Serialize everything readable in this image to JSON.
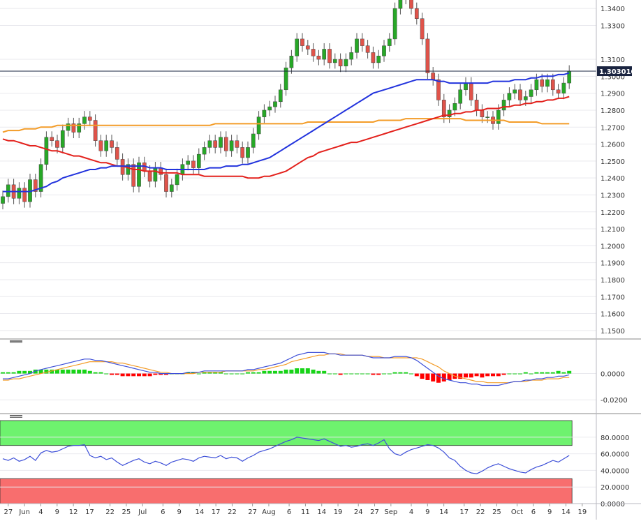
{
  "chart_data": [
    {
      "panel": "price",
      "type": "candlestick",
      "ylim": [
        1.145,
        1.345
      ],
      "y_ticks": [
        "1.3400",
        "1.3300",
        "1.3100",
        "1.3000",
        "1.2900",
        "1.2800",
        "1.2700",
        "1.2600",
        "1.2500",
        "1.2400",
        "1.2300",
        "1.2200",
        "1.2100",
        "1.2000",
        "1.1900",
        "1.1800",
        "1.1700",
        "1.1600",
        "1.1500"
      ],
      "y_tick_values": [
        1.34,
        1.33,
        1.31,
        1.3,
        1.29,
        1.28,
        1.27,
        1.26,
        1.25,
        1.24,
        1.23,
        1.22,
        1.21,
        1.2,
        1.19,
        1.18,
        1.17,
        1.16,
        1.15
      ],
      "current_price_label": "1.303010",
      "current_price": 1.30301,
      "up_color": "#27a827",
      "down_color": "#e0534a",
      "closes": [
        1.229,
        1.236,
        1.228,
        1.234,
        1.226,
        1.239,
        1.232,
        1.248,
        1.264,
        1.262,
        1.258,
        1.268,
        1.272,
        1.267,
        1.272,
        1.276,
        1.274,
        1.262,
        1.256,
        1.262,
        1.258,
        1.251,
        1.242,
        1.248,
        1.235,
        1.249,
        1.244,
        1.238,
        1.246,
        1.242,
        1.232,
        1.236,
        1.242,
        1.248,
        1.25,
        1.246,
        1.254,
        1.258,
        1.262,
        1.258,
        1.264,
        1.256,
        1.262,
        1.258,
        1.252,
        1.258,
        1.266,
        1.276,
        1.28,
        1.282,
        1.285,
        1.292,
        1.305,
        1.312,
        1.322,
        1.318,
        1.316,
        1.312,
        1.31,
        1.316,
        1.308,
        1.31,
        1.306,
        1.31,
        1.314,
        1.322,
        1.318,
        1.314,
        1.308,
        1.312,
        1.318,
        1.322,
        1.34,
        1.346,
        1.348,
        1.34,
        1.334,
        1.322,
        1.302,
        1.298,
        1.286,
        1.276,
        1.28,
        1.284,
        1.292,
        1.296,
        1.286,
        1.28,
        1.276,
        1.276,
        1.272,
        1.28,
        1.286,
        1.29,
        1.292,
        1.286,
        1.288,
        1.292,
        1.298,
        1.294,
        1.298,
        1.292,
        1.29,
        1.296,
        1.303
      ],
      "sma_200": [
        1.267,
        1.268,
        1.268,
        1.268,
        1.269,
        1.269,
        1.269,
        1.27,
        1.27,
        1.27,
        1.271,
        1.271,
        1.271,
        1.271,
        1.271,
        1.271,
        1.271,
        1.271,
        1.271,
        1.271,
        1.271,
        1.271,
        1.271,
        1.271,
        1.271,
        1.271,
        1.271,
        1.271,
        1.271,
        1.271,
        1.271,
        1.271,
        1.271,
        1.271,
        1.271,
        1.271,
        1.271,
        1.271,
        1.271,
        1.272,
        1.272,
        1.272,
        1.272,
        1.272,
        1.272,
        1.272,
        1.272,
        1.272,
        1.272,
        1.272,
        1.272,
        1.272,
        1.272,
        1.272,
        1.272,
        1.272,
        1.273,
        1.273,
        1.273,
        1.273,
        1.273,
        1.273,
        1.273,
        1.273,
        1.273,
        1.273,
        1.273,
        1.273,
        1.273,
        1.274,
        1.274,
        1.274,
        1.274,
        1.274,
        1.275,
        1.275,
        1.275,
        1.275,
        1.275,
        1.275,
        1.275,
        1.275,
        1.275,
        1.275,
        1.275,
        1.274,
        1.274,
        1.274,
        1.274,
        1.274,
        1.274,
        1.274,
        1.274,
        1.273,
        1.273,
        1.273,
        1.273,
        1.273,
        1.273,
        1.272,
        1.272,
        1.272,
        1.272,
        1.272,
        1.272
      ],
      "sma_100": [
        1.263,
        1.262,
        1.262,
        1.261,
        1.26,
        1.259,
        1.259,
        1.258,
        1.257,
        1.256,
        1.256,
        1.255,
        1.254,
        1.253,
        1.253,
        1.252,
        1.251,
        1.25,
        1.249,
        1.249,
        1.248,
        1.247,
        1.247,
        1.246,
        1.245,
        1.245,
        1.244,
        1.244,
        1.244,
        1.243,
        1.243,
        1.243,
        1.243,
        1.242,
        1.242,
        1.242,
        1.242,
        1.241,
        1.241,
        1.241,
        1.241,
        1.241,
        1.241,
        1.241,
        1.241,
        1.24,
        1.24,
        1.24,
        1.241,
        1.241,
        1.242,
        1.243,
        1.244,
        1.246,
        1.248,
        1.25,
        1.252,
        1.253,
        1.255,
        1.256,
        1.257,
        1.258,
        1.259,
        1.26,
        1.261,
        1.261,
        1.262,
        1.263,
        1.264,
        1.265,
        1.266,
        1.267,
        1.268,
        1.269,
        1.27,
        1.271,
        1.272,
        1.273,
        1.274,
        1.275,
        1.276,
        1.277,
        1.277,
        1.278,
        1.278,
        1.279,
        1.279,
        1.28,
        1.28,
        1.281,
        1.281,
        1.281,
        1.282,
        1.282,
        1.283,
        1.283,
        1.284,
        1.284,
        1.285,
        1.285,
        1.286,
        1.286,
        1.287,
        1.287,
        1.288
      ],
      "sma_55": [
        1.232,
        1.232,
        1.232,
        1.232,
        1.232,
        1.232,
        1.233,
        1.234,
        1.235,
        1.237,
        1.238,
        1.24,
        1.241,
        1.242,
        1.243,
        1.244,
        1.245,
        1.245,
        1.246,
        1.246,
        1.247,
        1.247,
        1.247,
        1.247,
        1.247,
        1.247,
        1.247,
        1.246,
        1.246,
        1.246,
        1.245,
        1.245,
        1.245,
        1.245,
        1.245,
        1.245,
        1.245,
        1.245,
        1.246,
        1.246,
        1.246,
        1.247,
        1.247,
        1.247,
        1.248,
        1.248,
        1.249,
        1.25,
        1.251,
        1.252,
        1.254,
        1.256,
        1.258,
        1.26,
        1.262,
        1.264,
        1.266,
        1.268,
        1.27,
        1.272,
        1.274,
        1.276,
        1.278,
        1.28,
        1.282,
        1.284,
        1.286,
        1.288,
        1.29,
        1.291,
        1.292,
        1.293,
        1.294,
        1.295,
        1.296,
        1.297,
        1.298,
        1.298,
        1.298,
        1.298,
        1.297,
        1.297,
        1.296,
        1.296,
        1.296,
        1.296,
        1.296,
        1.296,
        1.296,
        1.296,
        1.297,
        1.297,
        1.297,
        1.297,
        1.298,
        1.298,
        1.298,
        1.299,
        1.299,
        1.3,
        1.3,
        1.3,
        1.301,
        1.301,
        1.302
      ]
    },
    {
      "panel": "macd",
      "type": "line+histogram",
      "ylim": [
        -0.0305,
        0.0226
      ],
      "y_ticks": [
        "0.0000",
        "-0.0200"
      ],
      "y_tick_values": [
        0.0,
        -0.02
      ],
      "pos_color": "#18d418",
      "neg_color": "#ff0000",
      "macd": [
        -0.004,
        -0.004,
        -0.003,
        -0.002,
        -0.001,
        0.0,
        0.002,
        0.003,
        0.004,
        0.005,
        0.006,
        0.007,
        0.008,
        0.009,
        0.01,
        0.011,
        0.011,
        0.01,
        0.01,
        0.009,
        0.008,
        0.007,
        0.006,
        0.005,
        0.004,
        0.003,
        0.002,
        0.001,
        0.001,
        0.0,
        0.0,
        0.0,
        0.0,
        0.0,
        0.001,
        0.001,
        0.001,
        0.002,
        0.002,
        0.002,
        0.002,
        0.002,
        0.002,
        0.002,
        0.002,
        0.003,
        0.003,
        0.004,
        0.005,
        0.006,
        0.007,
        0.008,
        0.01,
        0.012,
        0.014,
        0.015,
        0.016,
        0.016,
        0.016,
        0.016,
        0.015,
        0.015,
        0.014,
        0.014,
        0.014,
        0.014,
        0.014,
        0.013,
        0.012,
        0.012,
        0.012,
        0.012,
        0.013,
        0.013,
        0.013,
        0.012,
        0.01,
        0.007,
        0.004,
        0.001,
        -0.002,
        -0.004,
        -0.005,
        -0.006,
        -0.007,
        -0.007,
        -0.008,
        -0.008,
        -0.009,
        -0.009,
        -0.009,
        -0.009,
        -0.008,
        -0.007,
        -0.006,
        -0.006,
        -0.005,
        -0.005,
        -0.004,
        -0.004,
        -0.003,
        -0.003,
        -0.002,
        -0.002,
        -0.001
      ],
      "signal": [
        -0.005,
        -0.005,
        -0.004,
        -0.004,
        -0.003,
        -0.002,
        -0.001,
        0.0,
        0.001,
        0.002,
        0.003,
        0.004,
        0.005,
        0.006,
        0.007,
        0.008,
        0.009,
        0.009,
        0.009,
        0.009,
        0.009,
        0.008,
        0.008,
        0.007,
        0.006,
        0.005,
        0.004,
        0.003,
        0.002,
        0.001,
        0.001,
        0.0,
        0.0,
        0.0,
        0.0,
        0.0,
        0.001,
        0.001,
        0.001,
        0.001,
        0.001,
        0.002,
        0.002,
        0.002,
        0.002,
        0.002,
        0.002,
        0.003,
        0.003,
        0.004,
        0.005,
        0.006,
        0.007,
        0.009,
        0.01,
        0.011,
        0.012,
        0.013,
        0.014,
        0.014,
        0.015,
        0.015,
        0.015,
        0.014,
        0.014,
        0.014,
        0.014,
        0.013,
        0.013,
        0.013,
        0.012,
        0.012,
        0.012,
        0.012,
        0.012,
        0.012,
        0.012,
        0.011,
        0.009,
        0.007,
        0.005,
        0.002,
        0.0,
        -0.002,
        -0.003,
        -0.004,
        -0.005,
        -0.006,
        -0.006,
        -0.007,
        -0.007,
        -0.007,
        -0.007,
        -0.007,
        -0.006,
        -0.006,
        -0.006,
        -0.005,
        -0.005,
        -0.005,
        -0.004,
        -0.004,
        -0.004,
        -0.003,
        -0.003
      ]
    },
    {
      "panel": "rsi",
      "type": "line",
      "ylim": [
        0,
        100
      ],
      "y_ticks": [
        "80.0000",
        "60.0000",
        "40.0000",
        "20.0000",
        "0.0000"
      ],
      "y_tick_values": [
        80,
        60,
        40,
        20,
        0
      ],
      "overbought_zone": [
        70,
        100
      ],
      "oversold_zone": [
        0,
        30
      ],
      "overbought_color": "#6ef26e",
      "oversold_color": "#f86e6e",
      "line_color": "#3d4fd8",
      "values": [
        54,
        52,
        55,
        51,
        53,
        57,
        52,
        61,
        64,
        62,
        63,
        66,
        69,
        70,
        70,
        71,
        58,
        55,
        57,
        53,
        55,
        50,
        46,
        49,
        52,
        54,
        50,
        48,
        51,
        49,
        46,
        50,
        52,
        54,
        53,
        51,
        55,
        57,
        56,
        55,
        58,
        54,
        56,
        55,
        51,
        55,
        58,
        62,
        64,
        66,
        69,
        72,
        75,
        77,
        80,
        79,
        78,
        77,
        76,
        78,
        75,
        72,
        69,
        70,
        68,
        69,
        71,
        72,
        70,
        73,
        77,
        66,
        60,
        58,
        62,
        65,
        67,
        69,
        71,
        70,
        67,
        62,
        55,
        52,
        45,
        40,
        37,
        36,
        39,
        43,
        46,
        48,
        45,
        42,
        40,
        38,
        37,
        41,
        44,
        46,
        49,
        52,
        50,
        54,
        58
      ]
    }
  ],
  "x_axis": {
    "labels": [
      "27",
      "Jun",
      "4",
      "9",
      "12",
      "17",
      "22",
      "25",
      "Jul",
      "6",
      "9",
      "14",
      "17",
      "22",
      "27",
      "Aug",
      "6",
      "11",
      "14",
      "19",
      "24",
      "27",
      "Sep",
      "4",
      "9",
      "14",
      "17",
      "22",
      "25",
      "Oct",
      "6",
      "9",
      "14",
      "19"
    ],
    "label_bar_index": [
      1,
      5,
      9,
      13,
      17,
      21,
      26,
      30,
      34,
      39,
      43,
      48,
      52,
      56,
      61,
      65,
      70,
      74,
      78,
      82,
      87,
      91,
      95,
      100,
      104,
      108,
      113,
      117,
      121,
      126,
      130,
      134,
      138,
      142
    ]
  },
  "colors": {
    "sma_200": "#f39c28",
    "sma_100": "#e3211c",
    "sma_55": "#2233dd",
    "macd_line": "#3d4fd8",
    "signal_line": "#f39c28",
    "price_line": "#1a2440",
    "label_bg": "#1a2440",
    "label_text": "#ffffff"
  }
}
